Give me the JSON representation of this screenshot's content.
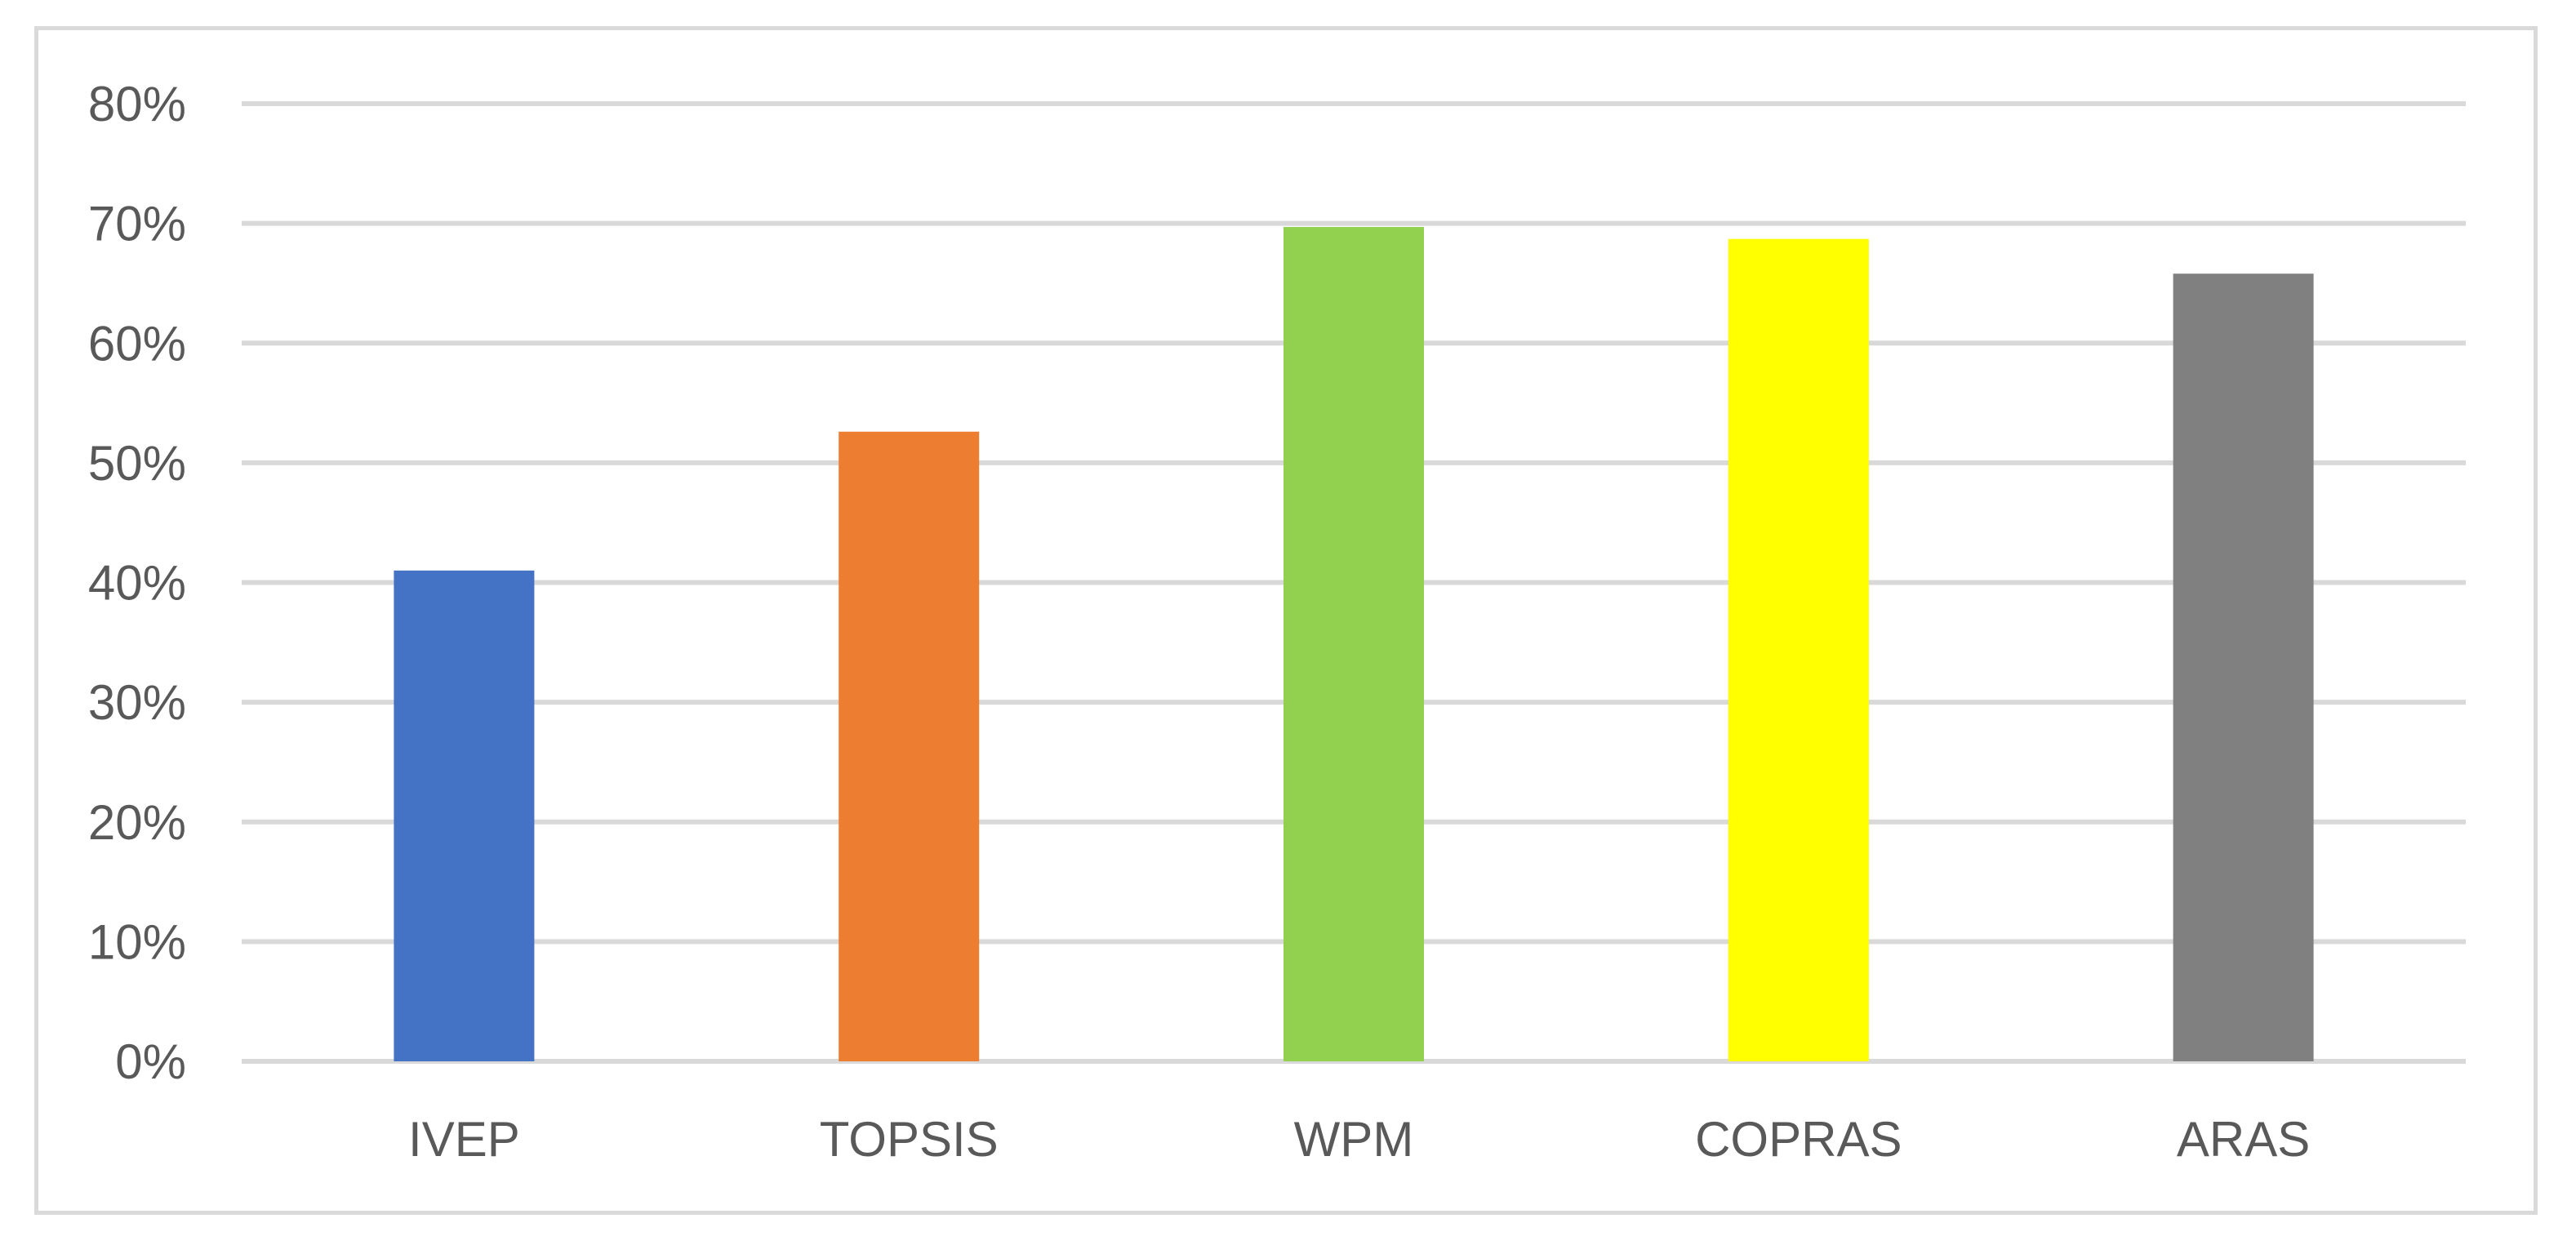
{
  "chart_data": {
    "type": "bar",
    "categories": [
      "IVEP",
      "TOPSIS",
      "WPM",
      "COPRAS",
      "ARAS"
    ],
    "values": [
      41,
      52.6,
      69.7,
      68.7,
      65.8
    ],
    "value_unit": "%",
    "colors": [
      "#4472c4",
      "#ed7d31",
      "#92d050",
      "#ffff00",
      "#808080"
    ],
    "ylim": [
      0,
      80
    ],
    "yticks": [
      "0%",
      "10%",
      "20%",
      "30%",
      "40%",
      "50%",
      "60%",
      "70%",
      "80%"
    ],
    "ytick_values": [
      0,
      10,
      20,
      30,
      40,
      50,
      60,
      70,
      80
    ],
    "title": "",
    "xlabel": "",
    "ylabel": "",
    "grid": true,
    "legend": "none",
    "gridline_color": "#d9d9d9",
    "tick_label_color": "#595959",
    "border_color": "#d9d9d9"
  }
}
